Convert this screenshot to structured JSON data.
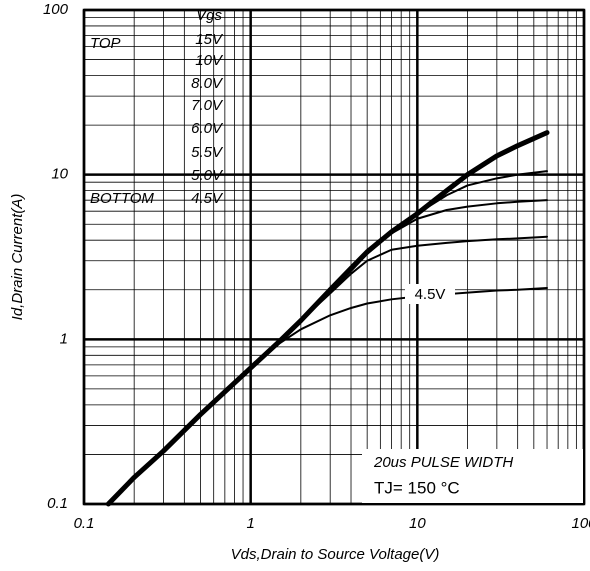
{
  "chart_data": {
    "type": "line",
    "x_label": "Vds,Drain to Source Voltage(V)",
    "y_label": "Id,Drain Current(A)",
    "log_x": true,
    "log_y": true,
    "grid": true,
    "xlim": [
      0.1,
      100
    ],
    "ylim": [
      0.1,
      100
    ],
    "xticks": [
      0.1,
      1,
      10,
      100
    ],
    "yticks": [
      0.1,
      1,
      10,
      100
    ],
    "xminor_ticks": [
      0.2,
      0.3,
      0.4,
      0.5,
      0.6,
      0.7,
      0.8,
      0.9,
      2,
      3,
      4,
      5,
      6,
      7,
      8,
      9,
      20,
      30,
      40,
      50,
      60,
      70,
      80,
      90
    ],
    "yminor_ticks": [
      0.2,
      0.3,
      0.4,
      0.5,
      0.6,
      0.7,
      0.8,
      0.9,
      2,
      3,
      4,
      5,
      6,
      7,
      8,
      9,
      20,
      30,
      40,
      50,
      60,
      70,
      80,
      90
    ],
    "legend_title": "Vgs",
    "legend_top": "TOP",
    "legend_bottom": "BOTTOM",
    "legend_items": [
      "15V",
      "10V",
      "8.0V",
      "7.0V",
      "6.0V",
      "5.5V",
      "5.0V",
      "4.5V"
    ],
    "annotation": "4.5V",
    "note_line1": "20us PULSE WIDTH",
    "note_line2": "TJ= 150 °C",
    "x": [
      0.14,
      0.2,
      0.3,
      0.5,
      0.7,
      1,
      1.5,
      2,
      3,
      4,
      5,
      7,
      10,
      15,
      20,
      30,
      40,
      60
    ],
    "series": [
      {
        "color": "#000",
        "values": [
          0.1,
          0.145,
          0.21,
          0.35,
          0.48,
          0.67,
          0.98,
          1.3,
          2.0,
          2.7,
          3.4,
          4.5,
          5.8,
          8,
          10,
          13,
          15,
          18
        ]
      },
      {
        "color": "#000",
        "values": [
          0.1,
          0.145,
          0.21,
          0.35,
          0.48,
          0.67,
          0.98,
          1.3,
          2.0,
          2.7,
          3.4,
          4.5,
          5.8,
          7.5,
          8.6,
          9.5,
          10,
          10.5
        ]
      },
      {
        "color": "#000",
        "values": [
          0.1,
          0.145,
          0.21,
          0.35,
          0.48,
          0.67,
          0.98,
          1.3,
          1.95,
          2.6,
          3.3,
          4.4,
          5.4,
          6.1,
          6.4,
          6.7,
          6.85,
          7.0
        ]
      },
      {
        "color": "#000",
        "values": [
          0.1,
          0.145,
          0.21,
          0.35,
          0.48,
          0.67,
          0.98,
          1.3,
          1.9,
          2.5,
          3.0,
          3.5,
          3.7,
          3.85,
          3.95,
          4.05,
          4.1,
          4.2
        ]
      },
      {
        "color": "#000",
        "values": [
          0.1,
          0.145,
          0.21,
          0.35,
          0.48,
          0.67,
          0.95,
          1.15,
          1.4,
          1.55,
          1.65,
          1.75,
          1.82,
          1.88,
          1.92,
          1.98,
          2.0,
          2.05
        ]
      }
    ]
  }
}
